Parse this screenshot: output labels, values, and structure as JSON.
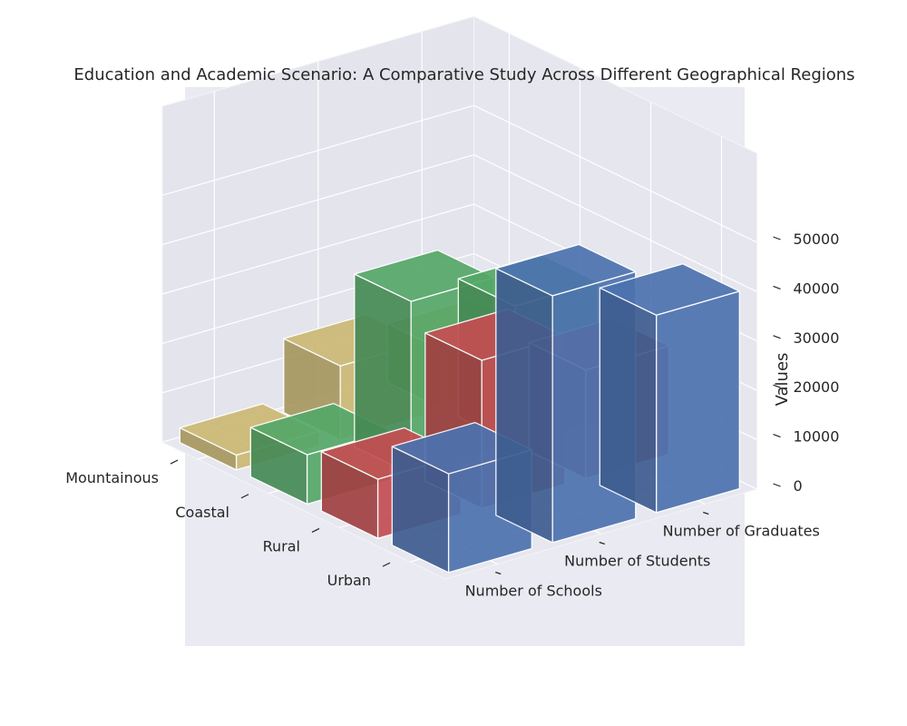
{
  "chart_data": {
    "type": "bar3d",
    "title": "Education and Academic Scenario: A Comparative Study Across Different Geographical Regions",
    "xlabel": "",
    "ylabel": "",
    "zlabel": "Values",
    "regions": [
      "Urban",
      "Rural",
      "Coastal",
      "Mountainous"
    ],
    "metrics": [
      "Number of Schools",
      "Number of Students",
      "Number of Graduates"
    ],
    "values": {
      "Urban": [
        20000,
        50000,
        40000
      ],
      "Rural": [
        12000,
        30000,
        22000
      ],
      "Coastal": [
        10000,
        35000,
        28000
      ],
      "Mountainous": [
        3000,
        15000,
        12000
      ]
    },
    "zlim": [
      0,
      50000
    ],
    "zticks": [
      "0",
      "10000",
      "20000",
      "30000",
      "40000",
      "50000"
    ],
    "region_colors": {
      "Urban": "#4c72b0",
      "Rural": "#c44e52",
      "Coastal": "#55a868",
      "Mountainous": "#ccb974"
    },
    "background": "#eaeaf2",
    "grid": true
  }
}
